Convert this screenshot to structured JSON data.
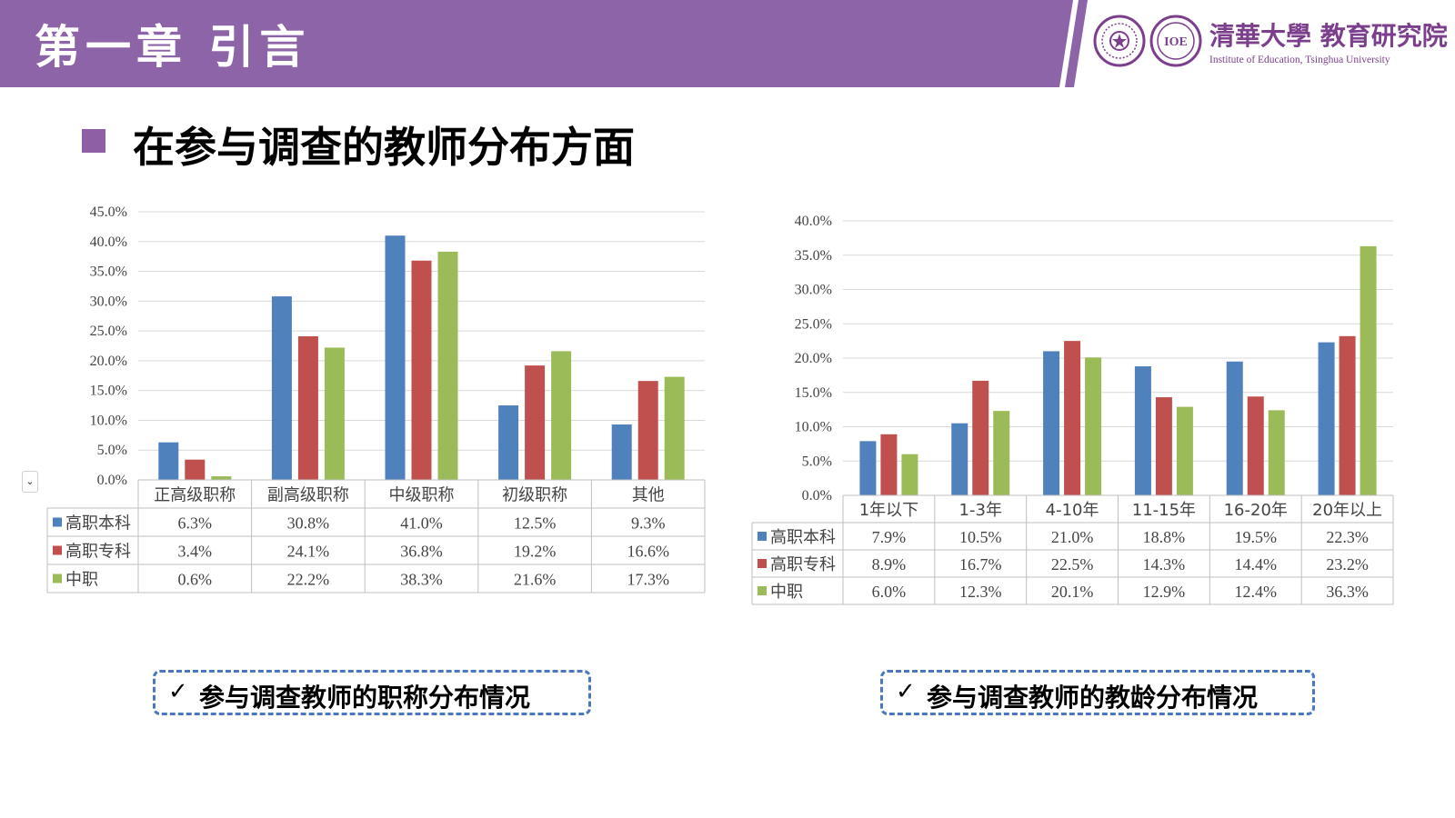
{
  "header": {
    "title": "第一章  引言",
    "bar_color": "#8e64a8",
    "logo": {
      "name": "清華大學 教育研究院",
      "subtitle": "Institute of Education, Tsinghua University",
      "seal_text": "IOE"
    }
  },
  "section": {
    "subtitle": "在参与调查的教师分布方面",
    "bullet_color": "#8e5fa5"
  },
  "colors": {
    "series1": "#4f81bd",
    "series2": "#c0504d",
    "series3": "#9bbb59",
    "caption_border": "#4a78c0"
  },
  "chart_data": [
    {
      "type": "bar",
      "categories": [
        "正高级职称",
        "副高级职称",
        "中级职称",
        "初级职称",
        "其他"
      ],
      "series": [
        {
          "name": "高职本科",
          "values": [
            6.3,
            30.8,
            41.0,
            12.5,
            9.3
          ],
          "labels": [
            "6.3%",
            "30.8%",
            "41.0%",
            "12.5%",
            "9.3%"
          ]
        },
        {
          "name": "高职专科",
          "values": [
            3.4,
            24.1,
            36.8,
            19.2,
            16.6
          ],
          "labels": [
            "3.4%",
            "24.1%",
            "36.8%",
            "19.2%",
            "16.6%"
          ]
        },
        {
          "name": "中职",
          "values": [
            0.6,
            22.2,
            38.3,
            21.6,
            17.3
          ],
          "labels": [
            "0.6%",
            "22.2%",
            "38.3%",
            "21.6%",
            "17.3%"
          ]
        }
      ],
      "ylim": [
        0,
        45
      ],
      "yticks": [
        "0.0%",
        "5.0%",
        "10.0%",
        "15.0%",
        "20.0%",
        "25.0%",
        "30.0%",
        "35.0%",
        "40.0%",
        "45.0%"
      ],
      "grid": true,
      "legend": "data-table"
    },
    {
      "type": "bar",
      "categories": [
        "1年以下",
        "1-3年",
        "4-10年",
        "11-15年",
        "16-20年",
        "20年以上"
      ],
      "series": [
        {
          "name": "高职本科",
          "values": [
            7.9,
            10.5,
            21.0,
            18.8,
            19.5,
            22.3
          ],
          "labels": [
            "7.9%",
            "10.5%",
            "21.0%",
            "18.8%",
            "19.5%",
            "22.3%"
          ]
        },
        {
          "name": "高职专科",
          "values": [
            8.9,
            16.7,
            22.5,
            14.3,
            14.4,
            23.2
          ],
          "labels": [
            "8.9%",
            "16.7%",
            "22.5%",
            "14.3%",
            "14.4%",
            "23.2%"
          ]
        },
        {
          "name": "中职",
          "values": [
            6.0,
            12.3,
            20.1,
            12.9,
            12.4,
            36.3
          ],
          "labels": [
            "6.0%",
            "12.3%",
            "20.1%",
            "12.9%",
            "12.4%",
            "36.3%"
          ]
        }
      ],
      "ylim": [
        0,
        40
      ],
      "yticks": [
        "0.0%",
        "5.0%",
        "10.0%",
        "15.0%",
        "20.0%",
        "25.0%",
        "30.0%",
        "35.0%",
        "40.0%"
      ],
      "grid": true,
      "legend": "data-table"
    }
  ],
  "captions": {
    "left": "参与调查教师的职称分布情况",
    "right": "参与调查教师的教龄分布情况",
    "check": "✓"
  },
  "side_button_glyph": "⌄"
}
